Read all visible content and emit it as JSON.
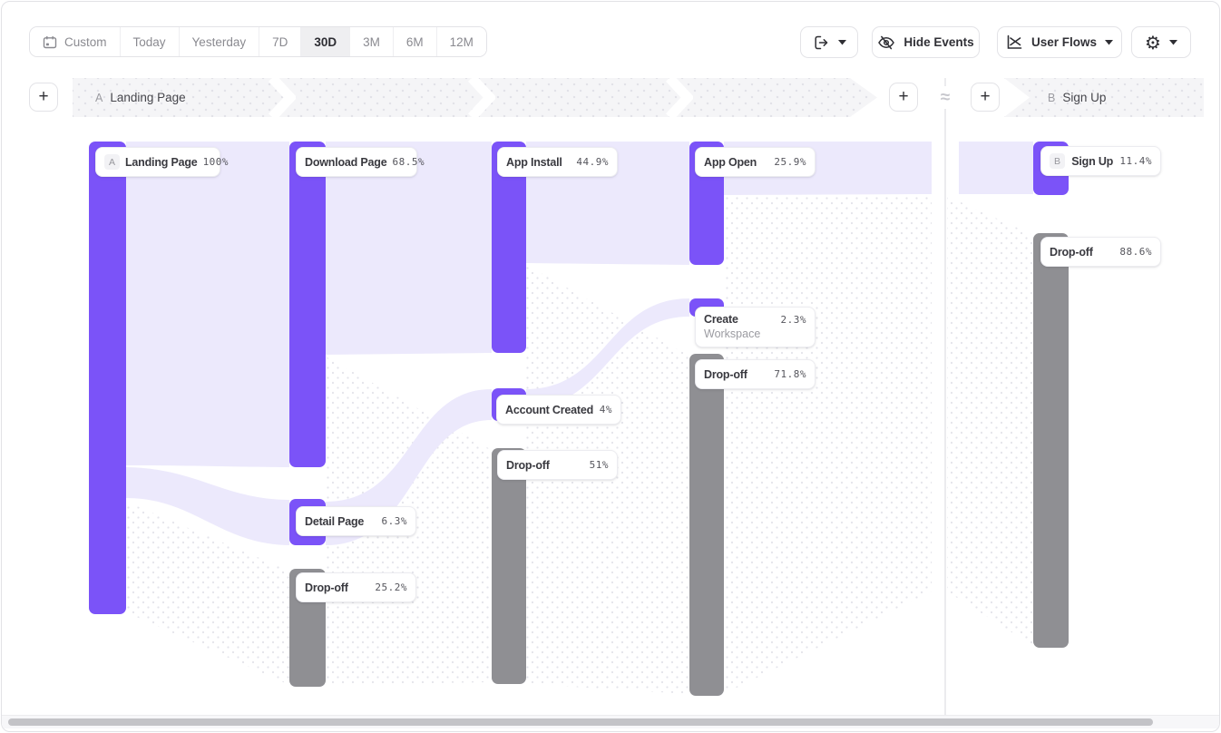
{
  "toolbar": {
    "date_ranges": [
      {
        "label": "Custom",
        "icon": "calendar-icon",
        "active": false
      },
      {
        "label": "Today",
        "active": false
      },
      {
        "label": "Yesterday",
        "active": false
      },
      {
        "label": "7D",
        "active": false
      },
      {
        "label": "30D",
        "active": true
      },
      {
        "label": "3M",
        "active": false
      },
      {
        "label": "6M",
        "active": false
      },
      {
        "label": "12M",
        "active": false
      }
    ],
    "icons": {
      "export": "export-icon",
      "hide_events": "eye-off-icon",
      "user_flows": "flow-chart-icon",
      "settings": "gear-icon",
      "caret": "chevron-down-icon"
    },
    "hide_events_label": "Hide Events",
    "view_selector_label": "User Flows",
    "gear_glyph": "⚙"
  },
  "funnel_header": {
    "add_step_label": "+",
    "section_a_badge": "A",
    "section_a_label": "Landing Page",
    "gap_symbol": "≈",
    "section_b_badge": "B",
    "section_b_label": "Sign Up"
  },
  "chart_data": {
    "type": "sankey",
    "unit": "% of users",
    "colors": {
      "step": "#7B53F8",
      "dropoff": "#8F8F93",
      "flow": "#ECE9FC",
      "flow_dotted": "#e3e3ea"
    },
    "nodes": [
      {
        "id": "landing",
        "badge": "A",
        "label": "Landing Page",
        "value": "100%",
        "kind": "step",
        "column": 1
      },
      {
        "id": "download",
        "label": "Download Page",
        "value": "68.5%",
        "kind": "step",
        "column": 2
      },
      {
        "id": "detail",
        "label": "Detail Page",
        "value": "6.3%",
        "kind": "step",
        "column": 2
      },
      {
        "id": "dropoff2",
        "label": "Drop-off",
        "value": "25.2%",
        "kind": "dropoff",
        "column": 2
      },
      {
        "id": "app_install",
        "label": "App Install",
        "value": "44.9%",
        "kind": "step",
        "column": 3
      },
      {
        "id": "account_created",
        "label": "Account Created",
        "value": "4%",
        "kind": "step",
        "column": 3
      },
      {
        "id": "dropoff3",
        "label": "Drop-off",
        "value": "51%",
        "kind": "dropoff",
        "column": 3
      },
      {
        "id": "app_open",
        "label": "App Open",
        "value": "25.9%",
        "kind": "step",
        "column": 4
      },
      {
        "id": "create_workspace",
        "label": "Create Workspace",
        "value": "2.3%",
        "kind": "step",
        "column": 4,
        "two_line": true
      },
      {
        "id": "dropoff4",
        "label": "Drop-off",
        "value": "71.8%",
        "kind": "dropoff",
        "column": 4
      },
      {
        "id": "sign_up",
        "badge": "B",
        "label": "Sign Up",
        "value": "11.4%",
        "kind": "step",
        "column": 5
      },
      {
        "id": "dropoff5",
        "label": "Drop-off",
        "value": "88.6%",
        "kind": "dropoff",
        "column": 5
      }
    ],
    "links": [
      {
        "from": "landing",
        "to": "download",
        "value": 68.5,
        "kind": "flow"
      },
      {
        "from": "landing",
        "to": "detail",
        "value": 6.3,
        "kind": "flow"
      },
      {
        "from": "landing",
        "to": "dropoff2",
        "value": 25.2,
        "kind": "dropoff"
      },
      {
        "from": "download",
        "to": "app_install",
        "value": 44.9,
        "kind": "flow"
      },
      {
        "from": "detail",
        "to": "account_created",
        "value": 4,
        "kind": "flow"
      },
      {
        "from": "download",
        "to": "dropoff3",
        "value": 51,
        "kind": "dropoff"
      },
      {
        "from": "app_install",
        "to": "app_open",
        "value": 25.9,
        "kind": "flow"
      },
      {
        "from": "account_created",
        "to": "create_workspace",
        "value": 2.3,
        "kind": "flow"
      },
      {
        "from": "app_install",
        "to": "dropoff4",
        "value": 71.8,
        "kind": "dropoff"
      },
      {
        "from": "app_open",
        "to": "sign_up",
        "value": 11.4,
        "kind": "flow"
      },
      {
        "from": "funnel_b_entry",
        "to": "dropoff5",
        "value": 88.6,
        "kind": "dropoff"
      }
    ]
  }
}
